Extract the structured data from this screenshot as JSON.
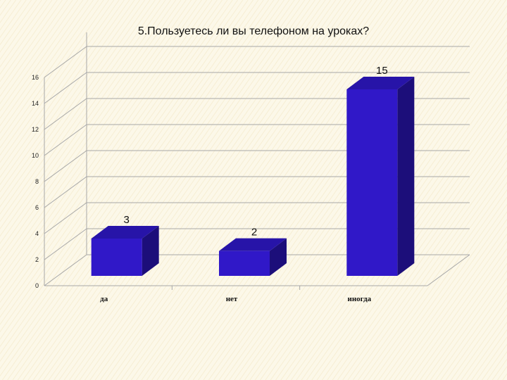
{
  "chart_data": {
    "type": "bar",
    "title": "5.Пользуетесь ли вы телефоном на уроках?",
    "categories": [
      "да",
      "нет",
      "иногда"
    ],
    "values": [
      3,
      2,
      15
    ],
    "data_labels": [
      "3",
      "2",
      "15"
    ],
    "y_ticks": [
      "0",
      "2",
      "4",
      "6",
      "8",
      "10",
      "12",
      "14",
      "16"
    ],
    "ylim": [
      0,
      16
    ],
    "grid": true,
    "legend": "none",
    "three_d": true
  },
  "colors": {
    "bar_front": "#3018c8",
    "bar_side": "#1c0e7a",
    "bar_top": "#2714a8",
    "grid": "#a8a8a8",
    "background": "#faf5e2"
  }
}
